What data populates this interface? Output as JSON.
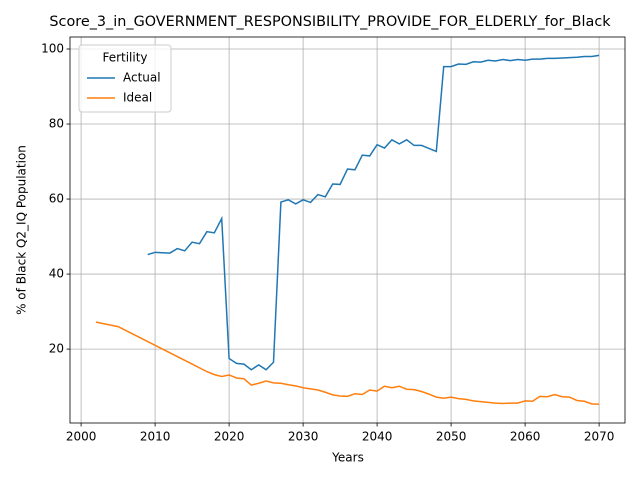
{
  "chart_data": {
    "type": "line",
    "title": "Score_3_in_GOVERNMENT_RESPONSIBILITY_PROVIDE_FOR_ELDERLY_for_Black",
    "xlabel": "Years",
    "ylabel": "% of Black Q2_IQ Population",
    "x": [
      2002,
      2003,
      2004,
      2005,
      2006,
      2007,
      2008,
      2009,
      2010,
      2011,
      2012,
      2013,
      2014,
      2015,
      2016,
      2017,
      2018,
      2019,
      2020,
      2021,
      2022,
      2023,
      2024,
      2025,
      2026,
      2027,
      2028,
      2029,
      2030,
      2031,
      2032,
      2033,
      2034,
      2035,
      2036,
      2037,
      2038,
      2039,
      2040,
      2041,
      2042,
      2043,
      2044,
      2045,
      2046,
      2047,
      2048,
      2049,
      2050,
      2051,
      2052,
      2053,
      2054,
      2055,
      2056,
      2057,
      2058,
      2059,
      2060,
      2061,
      2062,
      2063,
      2064,
      2065,
      2066,
      2067,
      2068,
      2069,
      2070
    ],
    "series": [
      {
        "name": "Actual",
        "color": "#1f77b4",
        "values": [
          null,
          null,
          null,
          null,
          null,
          null,
          null,
          45.2,
          45.8,
          45.7,
          45.6,
          46.8,
          46.2,
          48.5,
          48.1,
          51.3,
          51.0,
          54.8,
          17.5,
          16.2,
          16.0,
          14.5,
          15.8,
          14.5,
          16.5,
          59.2,
          59.8,
          58.7,
          59.8,
          59.1,
          61.2,
          60.6,
          64.0,
          63.9,
          68.0,
          67.8,
          71.7,
          71.5,
          74.5,
          73.6,
          75.8,
          74.7,
          75.8,
          74.3,
          74.3,
          73.5,
          72.7,
          95.3,
          95.3,
          96.0,
          95.9,
          96.6,
          96.5,
          97.0,
          96.8,
          97.2,
          96.9,
          97.2,
          97.0,
          97.3,
          97.3,
          97.5,
          97.5,
          97.6,
          97.7,
          97.8,
          98.0,
          98.0,
          98.3
        ]
      },
      {
        "name": "Ideal",
        "color": "#ff7f0e",
        "values": [
          27.2,
          26.8,
          26.4,
          26.0,
          25.0,
          24.0,
          23.0,
          22.0,
          21.0,
          20.0,
          19.0,
          18.0,
          17.0,
          16.0,
          15.0,
          14.0,
          13.2,
          12.7,
          13.1,
          12.3,
          12.1,
          10.4,
          10.9,
          11.5,
          11.0,
          10.9,
          10.5,
          10.2,
          9.7,
          9.4,
          9.1,
          8.5,
          7.8,
          7.5,
          7.4,
          8.1,
          7.9,
          9.1,
          8.8,
          10.1,
          9.7,
          10.1,
          9.3,
          9.2,
          8.7,
          8.0,
          7.2,
          6.9,
          7.2,
          6.8,
          6.6,
          6.2,
          6.0,
          5.8,
          5.6,
          5.5,
          5.6,
          5.6,
          6.2,
          6.1,
          7.4,
          7.3,
          7.9,
          7.3,
          7.2,
          6.3,
          6.1,
          5.4,
          5.3
        ]
      }
    ],
    "legend_title": "Fertility",
    "legend": "upper left",
    "xlim": [
      1998.5,
      2073.5
    ],
    "xticks": [
      2000,
      2010,
      2020,
      2030,
      2040,
      2050,
      2060,
      2070
    ],
    "ylim": [
      0.3,
      103.2
    ],
    "yticks": [
      20,
      40,
      60,
      80,
      100
    ],
    "grid": true
  }
}
